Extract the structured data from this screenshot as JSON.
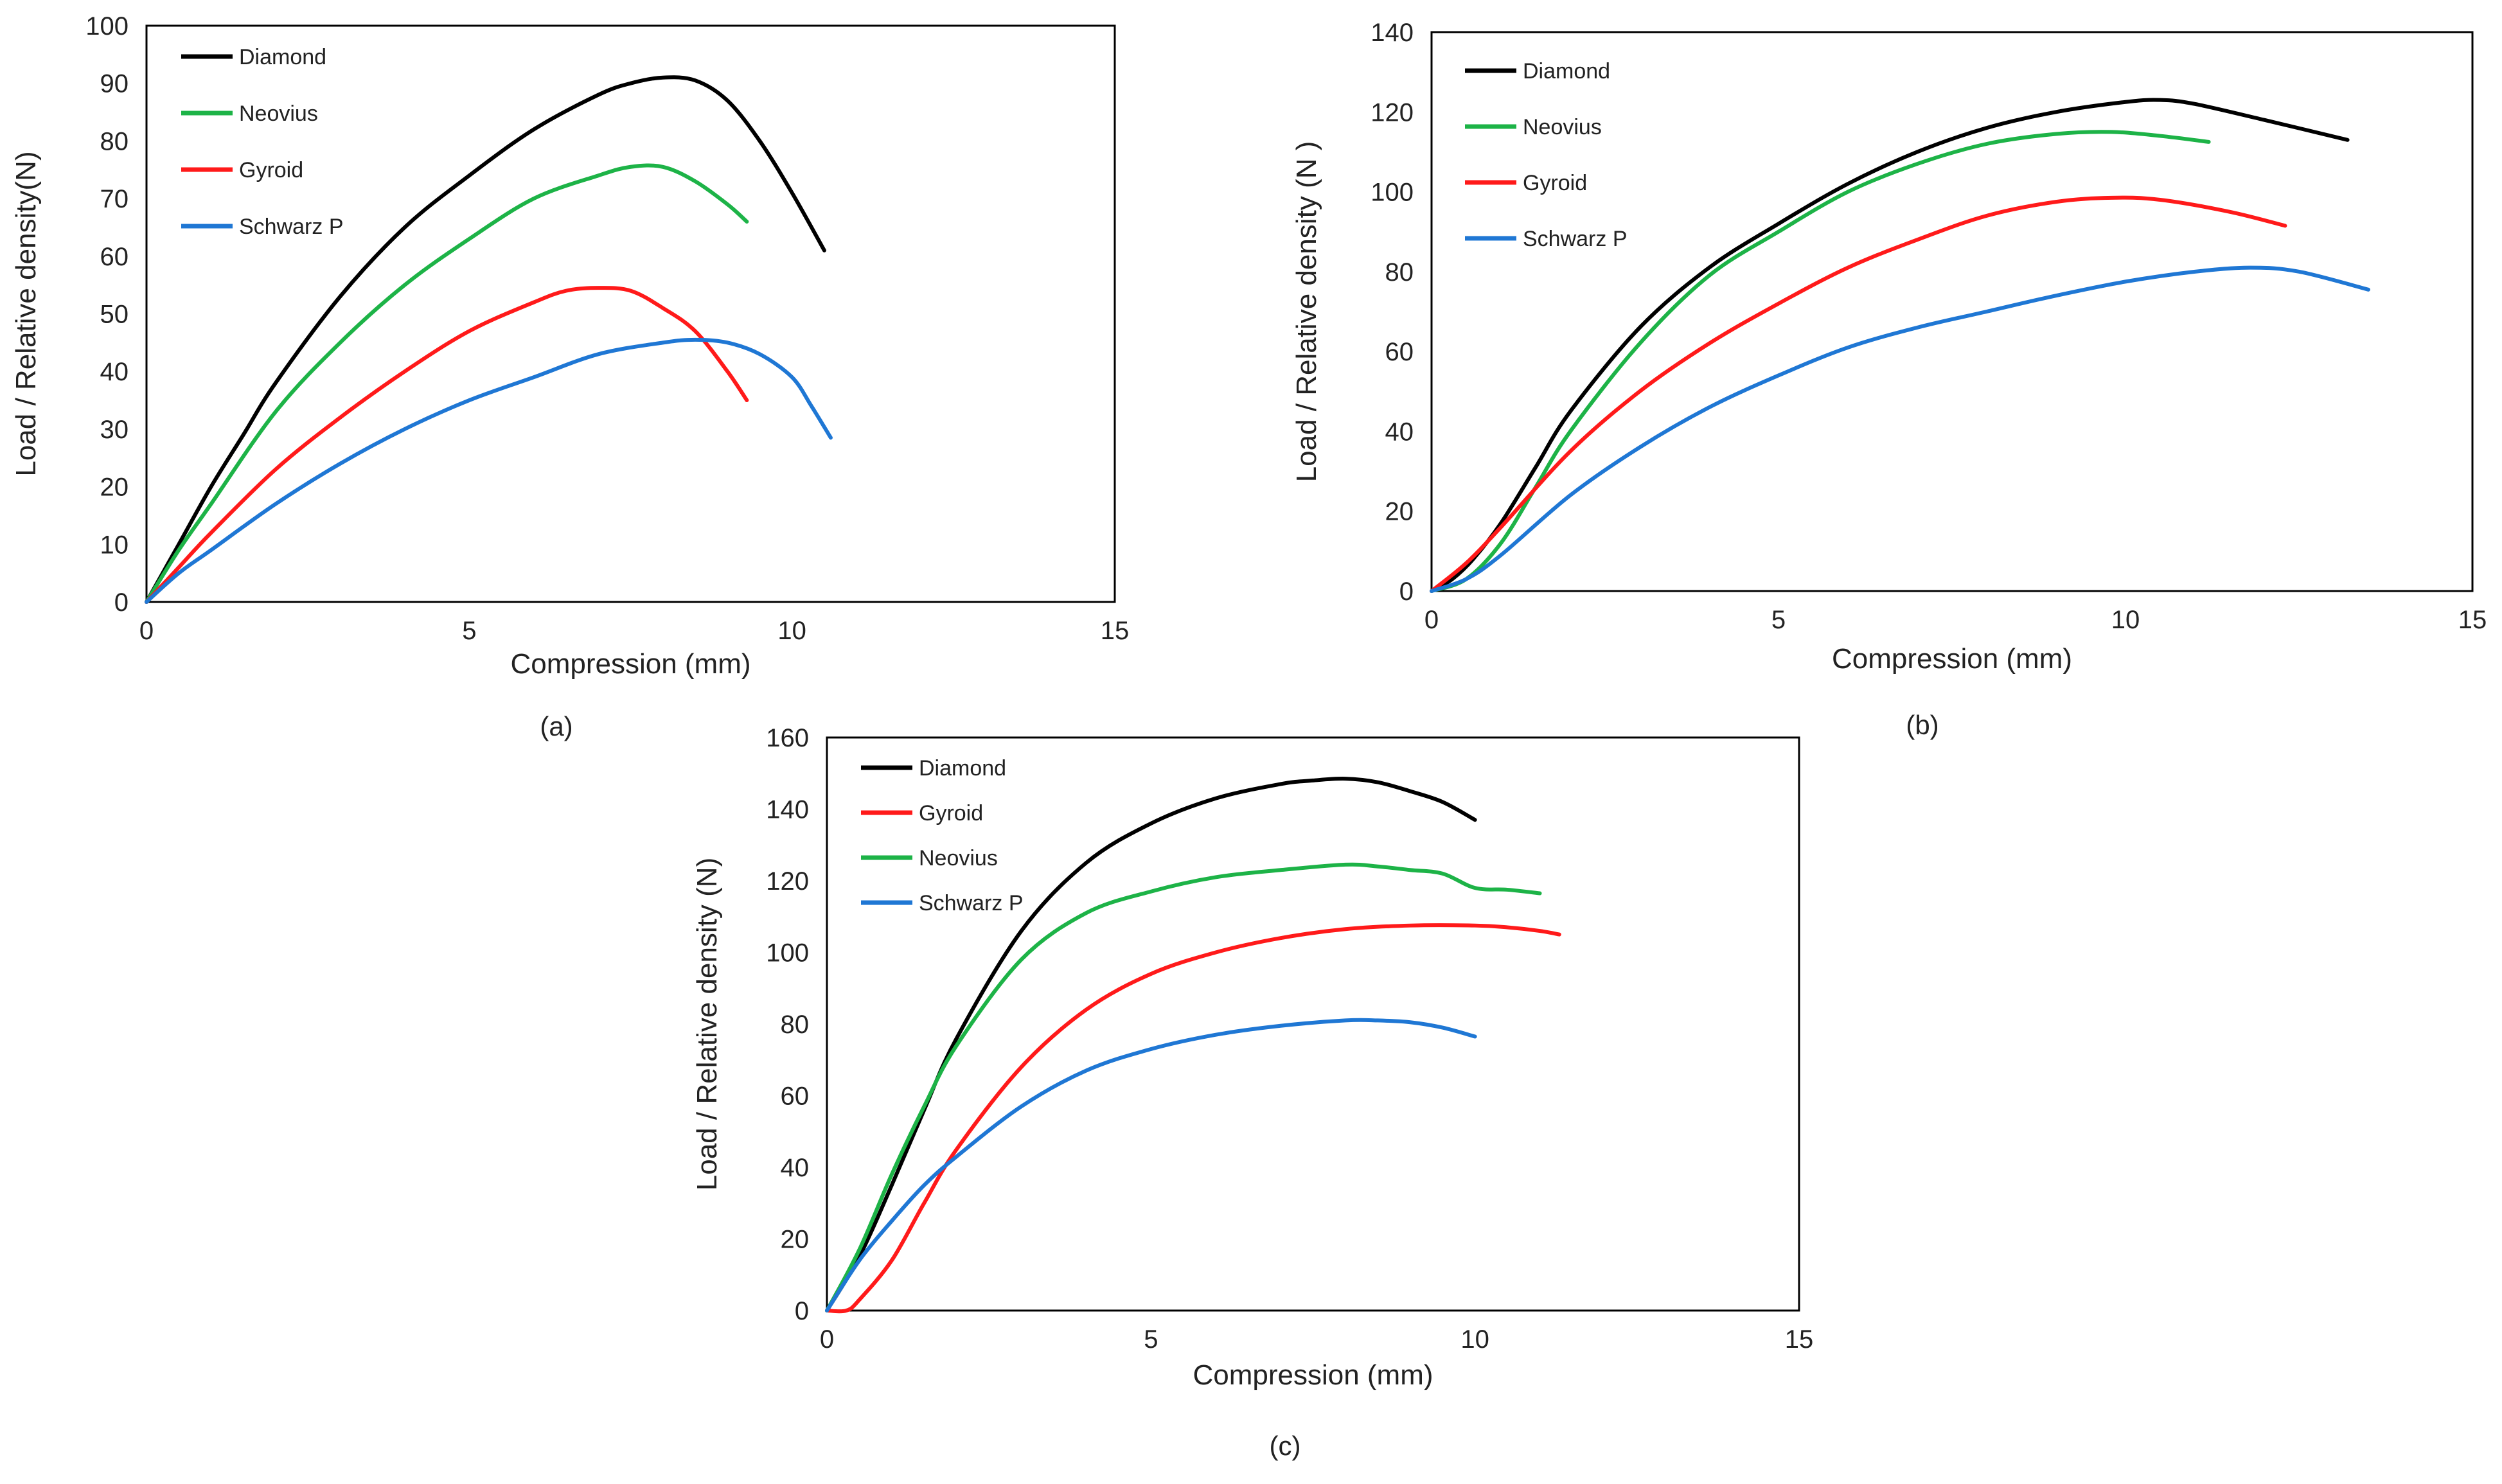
{
  "chart_data": [
    {
      "type": "line",
      "panel_label": "(a)",
      "xlabel": "Compression (mm)",
      "ylabel": "Load / Relative density(N)",
      "xlim": [
        0,
        15
      ],
      "ylim": [
        0,
        100
      ],
      "xticks": [
        0,
        5,
        10,
        15
      ],
      "yticks": [
        0,
        10,
        20,
        30,
        40,
        50,
        60,
        70,
        80,
        90,
        100
      ],
      "grid": false,
      "legend_position": "top-left",
      "series": [
        {
          "name": "Diamond",
          "color": "#000000",
          "x": [
            0,
            0.5,
            1,
            1.5,
            2,
            3,
            4,
            5,
            6,
            7,
            7.5,
            8,
            8.5,
            9,
            9.5,
            10,
            10.5
          ],
          "y": [
            0,
            10,
            20,
            29,
            38,
            53,
            65,
            74,
            82,
            88,
            90,
            91,
            90.5,
            87,
            80,
            71,
            61
          ]
        },
        {
          "name": "Neovius",
          "color": "#1db347",
          "x": [
            0,
            0.5,
            1,
            2,
            3,
            4,
            5,
            6,
            7,
            7.5,
            8,
            8.5,
            9,
            9.3
          ],
          "y": [
            0,
            9,
            17,
            33,
            45,
            55,
            63,
            70,
            74,
            75.5,
            75.5,
            73,
            69,
            66
          ]
        },
        {
          "name": "Gyroid",
          "color": "#ff1a1a",
          "x": [
            0,
            0.5,
            1,
            2,
            3,
            4,
            5,
            6,
            6.5,
            7,
            7.5,
            8,
            8.5,
            9,
            9.3
          ],
          "y": [
            0,
            6,
            12,
            23,
            32,
            40,
            47,
            52,
            54,
            54.5,
            54,
            51,
            47,
            40,
            35
          ]
        },
        {
          "name": "Schwarz P",
          "color": "#1f77d4",
          "x": [
            0,
            0.5,
            1,
            2,
            3,
            4,
            5,
            6,
            7,
            8,
            8.5,
            9,
            9.5,
            10,
            10.3,
            10.6
          ],
          "y": [
            0,
            5,
            9,
            17,
            24,
            30,
            35,
            39,
            43,
            45,
            45.5,
            45,
            43,
            39,
            34,
            28.5
          ]
        }
      ]
    },
    {
      "type": "line",
      "panel_label": "(b)",
      "xlabel": "Compression (mm)",
      "ylabel": "Load / Relative density (N )",
      "xlim": [
        0,
        15
      ],
      "ylim": [
        0,
        140
      ],
      "xticks": [
        0,
        5,
        10,
        15
      ],
      "yticks": [
        0,
        20,
        40,
        60,
        80,
        100,
        120,
        140
      ],
      "grid": false,
      "legend_position": "top-left",
      "series": [
        {
          "name": "Diamond",
          "color": "#000000",
          "x": [
            0,
            0.3,
            0.6,
            1,
            1.5,
            2,
            3,
            4,
            5,
            6,
            7,
            8,
            9,
            10,
            10.5,
            11,
            12,
            13.2
          ],
          "y": [
            0,
            3,
            8,
            17,
            31,
            45,
            66,
            81,
            92,
            102,
            110,
            116,
            120,
            122.5,
            123,
            122,
            118,
            113
          ]
        },
        {
          "name": "Neovius",
          "color": "#1db347",
          "x": [
            0,
            0.5,
            1,
            1.5,
            2,
            3,
            4,
            5,
            6,
            7,
            8,
            9,
            9.8,
            10.5,
            11.2
          ],
          "y": [
            0,
            3,
            12,
            26,
            40,
            62,
            79,
            90,
            100,
            107,
            112,
            114.5,
            115,
            114,
            112.5
          ]
        },
        {
          "name": "Gyroid",
          "color": "#ff1a1a",
          "x": [
            0,
            0.5,
            1,
            2,
            3,
            4,
            5,
            6,
            7,
            8,
            9,
            9.8,
            10.5,
            11.5,
            12.3
          ],
          "y": [
            0,
            7,
            16,
            35,
            50,
            62,
            72,
            81,
            88,
            94,
            97.5,
            98.5,
            98,
            95,
            91.5
          ]
        },
        {
          "name": "Schwarz P",
          "color": "#1f77d4",
          "x": [
            0,
            0.5,
            1,
            2,
            3,
            4,
            5,
            6,
            7,
            8,
            9,
            10,
            11,
            11.8,
            12.5,
            13.5
          ],
          "y": [
            0,
            3,
            9,
            24,
            36,
            46,
            54,
            61,
            66,
            70,
            74,
            77.5,
            80,
            81,
            80,
            75.5
          ]
        }
      ]
    },
    {
      "type": "line",
      "panel_label": "(c)",
      "xlabel": "Compression (mm)",
      "ylabel": "Load / Relative density (N)",
      "xlim": [
        0,
        15
      ],
      "ylim": [
        0,
        160
      ],
      "xticks": [
        0,
        5,
        10,
        15
      ],
      "yticks": [
        0,
        20,
        40,
        60,
        80,
        100,
        120,
        140,
        160
      ],
      "grid": false,
      "legend_position": "top-left",
      "series": [
        {
          "name": "Diamond",
          "color": "#000000",
          "x": [
            0,
            0.5,
            1,
            1.5,
            2,
            3,
            4,
            5,
            6,
            7,
            7.5,
            8,
            8.5,
            9,
            9.5,
            10
          ],
          "y": [
            0,
            15,
            35,
            56,
            76,
            106,
            125,
            136,
            143,
            147,
            148,
            148.5,
            147.5,
            145,
            142,
            137
          ]
        },
        {
          "name": "Gyroid",
          "color": "#ff1a1a",
          "x": [
            0,
            0.3,
            0.5,
            1,
            1.5,
            2,
            3,
            4,
            5,
            6,
            7,
            8,
            9,
            10,
            10.5,
            11,
            11.3
          ],
          "y": [
            0,
            0,
            3,
            14,
            30,
            45,
            68,
            84,
            94,
            100,
            104,
            106.5,
            107.5,
            107.5,
            107,
            106,
            105
          ]
        },
        {
          "name": "Neovius",
          "color": "#1db347",
          "x": [
            0,
            0.5,
            1,
            1.5,
            2,
            3,
            4,
            5,
            6,
            7,
            8,
            8.5,
            9,
            9.5,
            10,
            10.5,
            11
          ],
          "y": [
            0,
            17,
            38,
            57,
            74,
            98,
            111,
            117,
            121,
            123,
            124.5,
            124,
            123,
            122,
            118,
            117.5,
            116.5
          ]
        },
        {
          "name": "Schwarz P",
          "color": "#1f77d4",
          "x": [
            0,
            0.5,
            1,
            1.5,
            2,
            3,
            4,
            5,
            6,
            7,
            8,
            8.5,
            9,
            9.5,
            10
          ],
          "y": [
            0,
            14,
            25,
            35,
            43,
            57,
            67,
            73,
            77,
            79.5,
            81,
            81,
            80.5,
            79,
            76.5
          ]
        }
      ]
    }
  ]
}
